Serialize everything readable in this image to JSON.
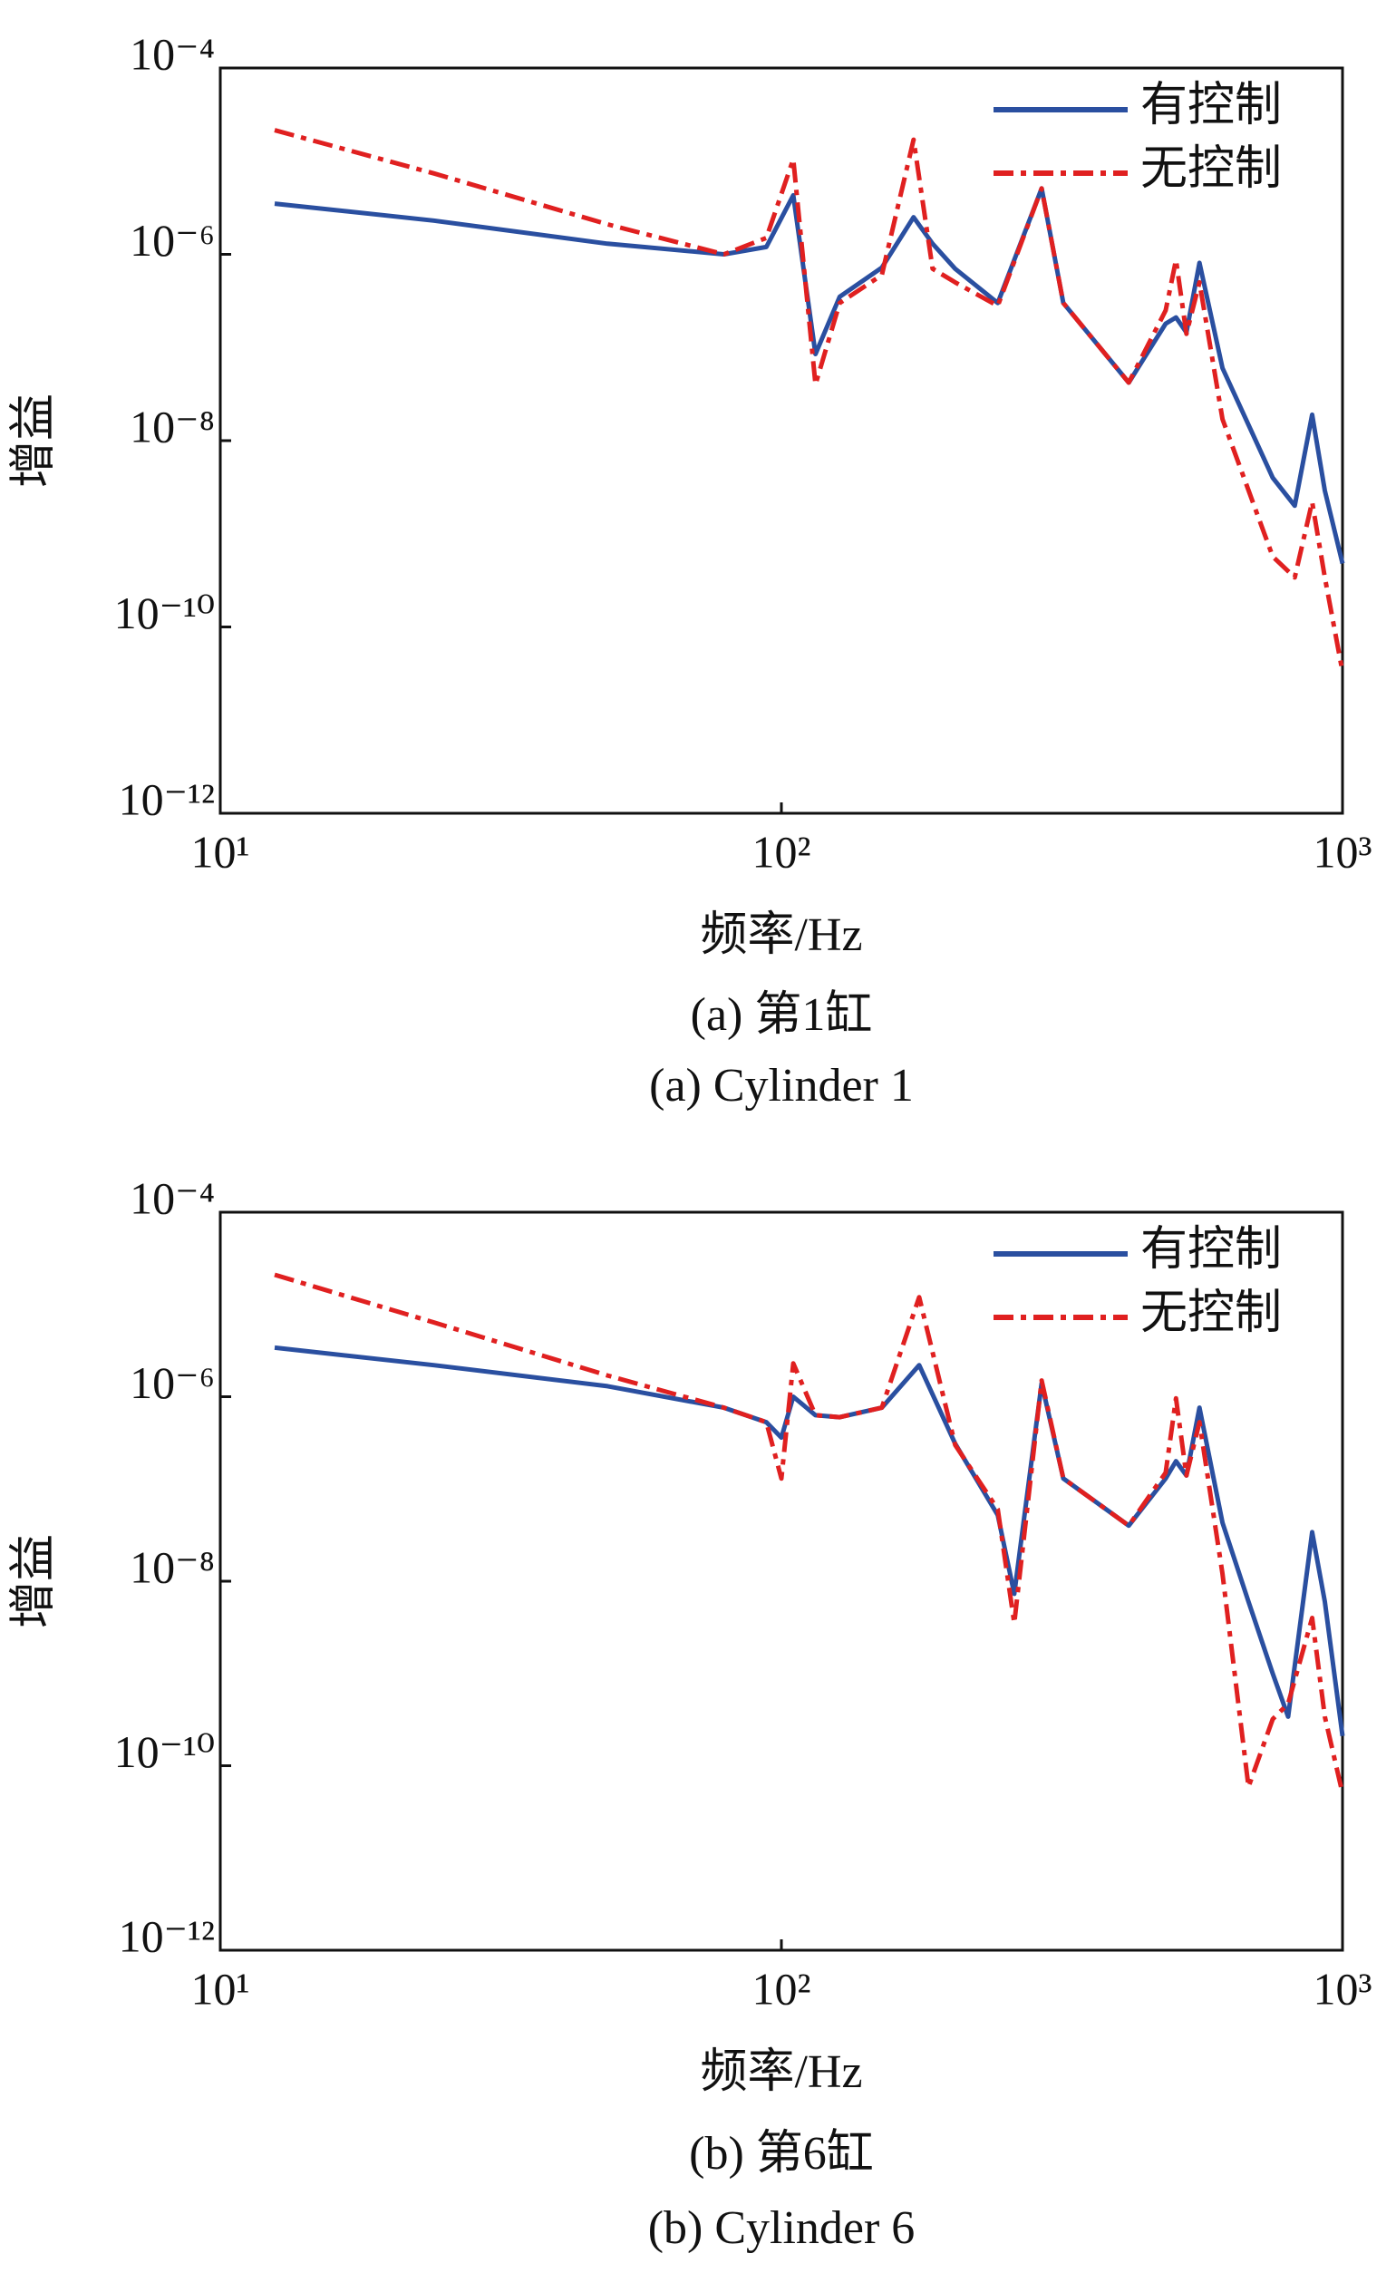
{
  "chart_data": [
    {
      "type": "line",
      "xscale": "log",
      "yscale": "log",
      "legend": "upper right",
      "xlabel": "频率/Hz",
      "ylabel": "增益",
      "caption": "(a) 第1缸",
      "caption_en": "(a) Cylinder 1",
      "xlim": [
        10,
        1000
      ],
      "ylim": [
        1e-12,
        0.0001
      ],
      "xticks": [
        {
          "value": 10,
          "label": "10¹"
        },
        {
          "value": 100,
          "label": "10²"
        },
        {
          "value": 1000,
          "label": "10³"
        }
      ],
      "yticks": [
        {
          "value": 1e-12,
          "label": "10⁻¹²"
        },
        {
          "value": 1e-10,
          "label": "10⁻¹⁰"
        },
        {
          "value": 1e-08,
          "label": "10⁻⁸"
        },
        {
          "value": 1e-06,
          "label": "10⁻⁶"
        },
        {
          "value": 0.0001,
          "label": "10⁻⁴"
        }
      ],
      "x": [
        12.5,
        24,
        49,
        79,
        94,
        105,
        115,
        127,
        151,
        172,
        186,
        204,
        243,
        291,
        318,
        416,
        484,
        505,
        527,
        556,
        611,
        751,
        822,
        883,
        930,
        1000
      ],
      "series": [
        {
          "name": "有控制",
          "color": "#2a4fa0",
          "dash": "solid",
          "values": [
            3.5e-06,
            2.3e-06,
            1.3e-06,
            1e-06,
            1.2e-06,
            4.3e-06,
            8.5e-08,
            3.5e-07,
            7.2e-07,
            2.5e-06,
            1.3e-06,
            7e-07,
            3e-07,
            5.1e-06,
            3e-07,
            4.2e-08,
            1.8e-07,
            2.1e-07,
            1.45e-07,
            8.1e-07,
            6e-08,
            4e-09,
            2e-09,
            1.9e-08,
            2.9e-09,
            4.8e-10
          ]
        },
        {
          "name": "无控制",
          "color": "#e02020",
          "dash": "dashdot",
          "values": [
            2.15e-05,
            7.4e-06,
            2.1e-06,
            1e-06,
            1.5e-06,
            1.05e-05,
            4e-08,
            3e-07,
            6e-07,
            1.7e-05,
            7e-07,
            5e-07,
            2.8e-07,
            5.1e-06,
            3e-07,
            4.2e-08,
            2.5e-07,
            8.7e-07,
            1.4e-07,
            5e-07,
            1.7e-08,
            5.7e-10,
            3.4e-10,
            2.2e-09,
            3.4e-10,
            3.3e-11
          ]
        }
      ]
    },
    {
      "type": "line",
      "xscale": "log",
      "yscale": "log",
      "legend": "upper right",
      "xlabel": "频率/Hz",
      "ylabel": "增益",
      "caption": "(b) 第6缸",
      "caption_en": "(b) Cylinder 6",
      "xlim": [
        10,
        1000
      ],
      "ylim": [
        1e-12,
        0.0001
      ],
      "xticks": [
        {
          "value": 10,
          "label": "10¹"
        },
        {
          "value": 100,
          "label": "10²"
        },
        {
          "value": 1000,
          "label": "10³"
        }
      ],
      "yticks": [
        {
          "value": 1e-12,
          "label": "10⁻¹²"
        },
        {
          "value": 1e-10,
          "label": "10⁻¹⁰"
        },
        {
          "value": 1e-08,
          "label": "10⁻⁸"
        },
        {
          "value": 1e-06,
          "label": "10⁻⁶"
        },
        {
          "value": 0.0001,
          "label": "10⁻⁴"
        }
      ],
      "x": [
        12.5,
        24,
        49,
        79,
        94,
        100,
        105,
        115,
        127,
        151,
        176,
        204,
        243,
        260,
        291,
        318,
        416,
        484,
        505,
        527,
        556,
        611,
        680,
        751,
        800,
        883,
        930,
        1000
      ],
      "series": [
        {
          "name": "有控制",
          "color": "#2a4fa0",
          "dash": "solid",
          "values": [
            3.4e-06,
            2.2e-06,
            1.3e-06,
            7.6e-07,
            5.3e-07,
            3.6e-07,
            1e-06,
            6.3e-07,
            6e-07,
            7.6e-07,
            2.2e-06,
            3.1e-07,
            5.2e-08,
            7.3e-09,
            1.4e-06,
            1.3e-07,
            4e-08,
            1.3e-07,
            2e-07,
            1.4e-07,
            7.6e-07,
            4.3e-08,
            6e-09,
            1e-09,
            3.4e-10,
            3.4e-08,
            6e-09,
            2.1e-10
          ]
        },
        {
          "name": "无控制",
          "color": "#e02020",
          "dash": "dashdot",
          "values": [
            2.1e-05,
            6.4e-06,
            1.7e-06,
            7.6e-07,
            5.3e-07,
            1.3e-07,
            2.3e-06,
            6.3e-07,
            6e-07,
            7.6e-07,
            1.2e-05,
            3e-07,
            6e-08,
            3.5e-09,
            1.5e-06,
            1.3e-07,
            4e-08,
            1.5e-07,
            9.6e-07,
            1.4e-07,
            5.3e-07,
            1.2e-08,
            5.9e-11,
            3.2e-10,
            4.7e-10,
            4e-09,
            3.4e-10,
            5e-11
          ]
        }
      ]
    }
  ]
}
